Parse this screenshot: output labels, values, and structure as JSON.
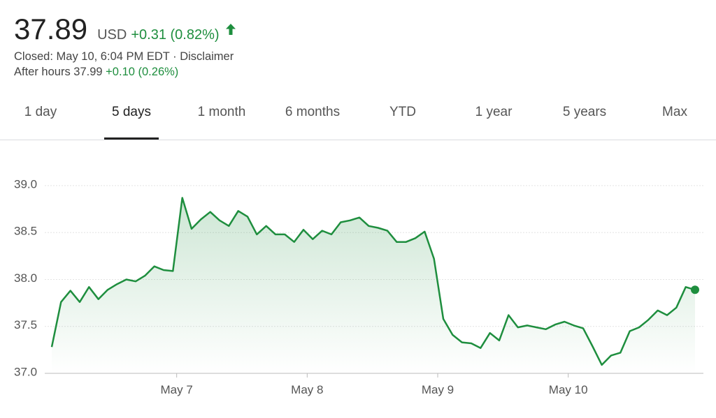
{
  "header": {
    "price": "37.89",
    "currency": "USD",
    "change": "+0.31 (0.82%)",
    "status": "Closed: May 10, 6:04 PM EDT ·",
    "disclaimer": "Disclaimer",
    "after_hours": "After hours 37.99",
    "after_hours_change": "+0.10 (0.26%)"
  },
  "tabs": [
    "1 day",
    "5 days",
    "1 month",
    "6 months",
    "YTD",
    "1 year",
    "5 years",
    "Max"
  ],
  "selected_tab": "5 days",
  "chart_data": {
    "type": "line",
    "color": "#1e8e3e",
    "grid": true,
    "x": [
      0,
      1,
      2,
      3,
      4,
      5,
      6,
      7,
      8,
      9,
      10,
      11,
      12,
      13,
      14,
      15,
      16,
      17,
      18,
      19,
      20,
      21,
      22,
      23,
      24,
      25,
      26,
      27,
      28,
      29,
      30,
      31,
      32,
      33,
      34,
      35,
      36,
      37,
      38,
      39,
      40,
      41,
      42,
      43,
      44,
      45,
      46,
      47,
      48,
      49,
      50,
      51,
      52,
      53,
      54,
      55,
      56,
      57,
      58,
      59,
      60,
      61,
      62,
      63,
      64,
      65,
      66,
      67,
      68,
      69
    ],
    "values": [
      37.28,
      37.76,
      37.88,
      37.76,
      37.92,
      37.79,
      37.89,
      37.95,
      38.0,
      37.98,
      38.04,
      38.14,
      38.1,
      38.09,
      38.87,
      38.54,
      38.64,
      38.72,
      38.63,
      38.57,
      38.73,
      38.67,
      38.48,
      38.57,
      38.48,
      38.48,
      38.4,
      38.53,
      38.43,
      38.52,
      38.48,
      38.61,
      38.63,
      38.66,
      38.57,
      38.55,
      38.52,
      38.4,
      38.4,
      38.44,
      38.51,
      38.22,
      37.58,
      37.41,
      37.33,
      37.32,
      37.27,
      37.43,
      37.35,
      37.62,
      37.49,
      37.51,
      37.49,
      37.47,
      37.52,
      37.55,
      37.51,
      37.48,
      37.29,
      37.09,
      37.19,
      37.22,
      37.45,
      37.49,
      37.57,
      37.67,
      37.62,
      37.7,
      37.92,
      37.89
    ],
    "xlim": [
      0,
      69
    ],
    "xticks": [
      {
        "value": 13.4,
        "label": "May 7"
      },
      {
        "value": 27.4,
        "label": "May 8"
      },
      {
        "value": 41.4,
        "label": "May 9"
      },
      {
        "value": 55.4,
        "label": "May 10"
      }
    ],
    "ylim": [
      37,
      39
    ],
    "yticks": [
      {
        "value": 37,
        "label": "37.0"
      },
      37.5,
      {
        "value": 38,
        "label": "38.0"
      },
      38.5,
      {
        "value": 39,
        "label": "39.0"
      }
    ]
  }
}
